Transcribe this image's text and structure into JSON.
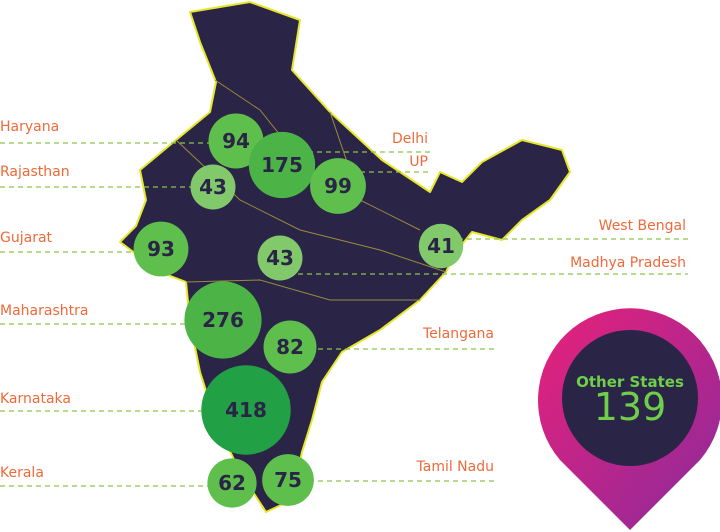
{
  "states": [
    {
      "name": "Haryana",
      "value": 94
    },
    {
      "name": "Delhi",
      "value": 175
    },
    {
      "name": "UP",
      "value": 99
    },
    {
      "name": "Rajasthan",
      "value": 43
    },
    {
      "name": "Gujarat",
      "value": 93
    },
    {
      "name": "West Bengal",
      "value": 41
    },
    {
      "name": "Madhya Pradesh",
      "value": 43
    },
    {
      "name": "Maharashtra",
      "value": 276
    },
    {
      "name": "Telangana",
      "value": 82
    },
    {
      "name": "Karnataka",
      "value": 418
    },
    {
      "name": "Kerala",
      "value": 62
    },
    {
      "name": "Tamil Nadu",
      "value": 75
    }
  ],
  "other": {
    "label": "Other States",
    "value": 139
  }
}
